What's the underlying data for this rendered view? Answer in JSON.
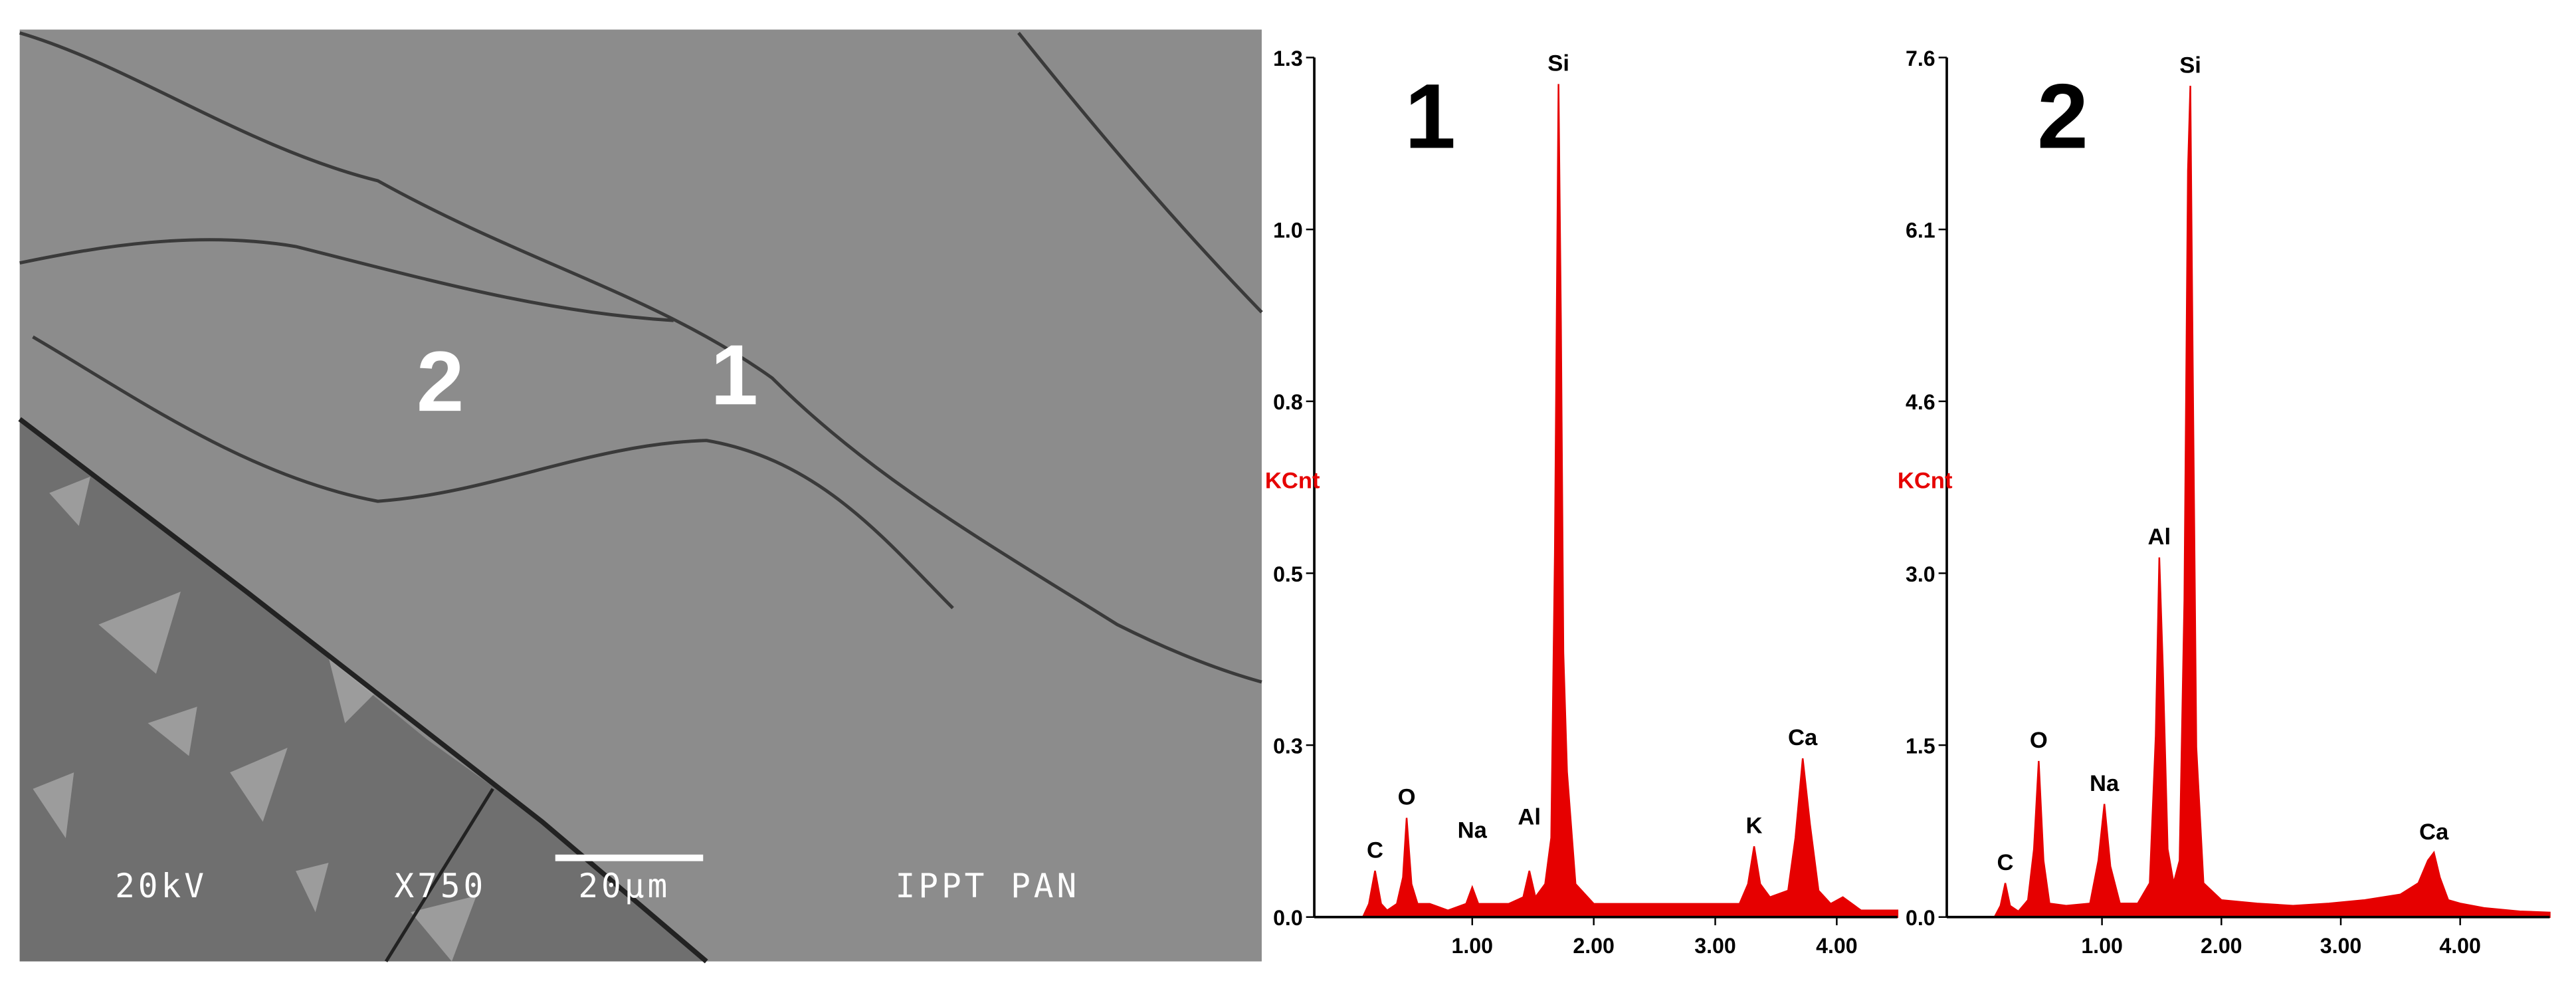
{
  "image": {
    "labels": [
      "2",
      "1"
    ],
    "info": [
      "20kV",
      "X750",
      "20µm",
      "IPPT PAN"
    ]
  },
  "chart_data": [
    {
      "type": "area",
      "panel_label": "1",
      "ylabel": "KCnt",
      "color": "#e60000",
      "xlim": [
        -0.3,
        4.5
      ],
      "ylim": [
        0,
        1.3
      ],
      "xticks": [
        {
          "value": 1,
          "label": "1.00"
        },
        {
          "value": 2,
          "label": "2.00"
        },
        {
          "value": 3,
          "label": "3.00"
        },
        {
          "value": 4,
          "label": "4.00"
        }
      ],
      "yticks": [
        {
          "value": 0,
          "label": "0.0"
        },
        {
          "value": 0.26,
          "label": "0.3"
        },
        {
          "value": 0.52,
          "label": "0.5"
        },
        {
          "value": 0.78,
          "label": "0.8"
        },
        {
          "value": 1.04,
          "label": "1.0"
        },
        {
          "value": 1.3,
          "label": "1.3"
        }
      ],
      "x": [
        0.1,
        0.15,
        0.2,
        0.25,
        0.3,
        0.38,
        0.43,
        0.46,
        0.5,
        0.55,
        0.65,
        0.8,
        0.95,
        1.0,
        1.05,
        1.15,
        1.3,
        1.42,
        1.47,
        1.52,
        1.6,
        1.65,
        1.68,
        1.7,
        1.71,
        1.73,
        1.75,
        1.78,
        1.85,
        2.0,
        2.3,
        2.6,
        2.9,
        3.2,
        3.27,
        3.32,
        3.37,
        3.45,
        3.6,
        3.66,
        3.72,
        3.78,
        3.85,
        3.95,
        4.05,
        4.2,
        4.5
      ],
      "values": [
        0.0,
        0.02,
        0.07,
        0.02,
        0.01,
        0.02,
        0.06,
        0.15,
        0.05,
        0.02,
        0.02,
        0.01,
        0.02,
        0.045,
        0.02,
        0.02,
        0.02,
        0.03,
        0.07,
        0.03,
        0.05,
        0.12,
        0.55,
        1.02,
        1.26,
        0.9,
        0.4,
        0.22,
        0.05,
        0.02,
        0.02,
        0.02,
        0.02,
        0.02,
        0.05,
        0.107,
        0.05,
        0.03,
        0.04,
        0.12,
        0.24,
        0.14,
        0.04,
        0.02,
        0.03,
        0.01,
        0.01
      ],
      "annotations": [
        {
          "text": "C",
          "x": 0.2,
          "y": 0.07
        },
        {
          "text": "O",
          "x": 0.46,
          "y": 0.15
        },
        {
          "text": "Na",
          "x": 1.0,
          "y": 0.1
        },
        {
          "text": "Al",
          "x": 1.47,
          "y": 0.12
        },
        {
          "text": "Si",
          "x": 1.71,
          "y": 1.26
        },
        {
          "text": "K",
          "x": 3.32,
          "y": 0.107
        },
        {
          "text": "Ca",
          "x": 3.72,
          "y": 0.24
        }
      ]
    },
    {
      "type": "area",
      "panel_label": "2",
      "ylabel": "KCnt",
      "color": "#e60000",
      "xlim": [
        -0.3,
        4.75
      ],
      "ylim": [
        0,
        7.6
      ],
      "xticks": [
        {
          "value": 1,
          "label": "1.00"
        },
        {
          "value": 2,
          "label": "2.00"
        },
        {
          "value": 3,
          "label": "3.00"
        },
        {
          "value": 4,
          "label": "4.00"
        }
      ],
      "yticks": [
        {
          "value": 0,
          "label": "0.0"
        },
        {
          "value": 1.52,
          "label": "1.5"
        },
        {
          "value": 3.04,
          "label": "3.0"
        },
        {
          "value": 4.56,
          "label": "4.6"
        },
        {
          "value": 6.08,
          "label": "6.1"
        },
        {
          "value": 7.6,
          "label": "7.6"
        }
      ],
      "x": [
        0.1,
        0.15,
        0.19,
        0.23,
        0.3,
        0.38,
        0.43,
        0.47,
        0.51,
        0.56,
        0.7,
        0.9,
        0.97,
        1.02,
        1.07,
        1.15,
        1.3,
        1.4,
        1.45,
        1.48,
        1.51,
        1.55,
        1.6,
        1.65,
        1.69,
        1.72,
        1.74,
        1.76,
        1.79,
        1.85,
        2.0,
        2.3,
        2.6,
        2.9,
        3.2,
        3.5,
        3.65,
        3.73,
        3.78,
        3.83,
        3.9,
        4.0,
        4.2,
        4.5,
        4.75
      ],
      "values": [
        0.0,
        0.1,
        0.3,
        0.1,
        0.05,
        0.15,
        0.6,
        1.38,
        0.5,
        0.12,
        0.1,
        0.12,
        0.5,
        1.0,
        0.45,
        0.12,
        0.12,
        0.3,
        1.6,
        3.18,
        2.2,
        0.6,
        0.3,
        0.5,
        2.8,
        6.6,
        7.35,
        4.9,
        1.5,
        0.3,
        0.15,
        0.12,
        0.1,
        0.12,
        0.15,
        0.2,
        0.3,
        0.5,
        0.57,
        0.35,
        0.15,
        0.12,
        0.08,
        0.05,
        0.04
      ],
      "annotations": [
        {
          "text": "C",
          "x": 0.19,
          "y": 0.3
        },
        {
          "text": "O",
          "x": 0.47,
          "y": 1.38
        },
        {
          "text": "Na",
          "x": 1.02,
          "y": 1.0
        },
        {
          "text": "Al",
          "x": 1.48,
          "y": 3.18
        },
        {
          "text": "Si",
          "x": 1.74,
          "y": 7.35
        },
        {
          "text": "Ca",
          "x": 3.78,
          "y": 0.57
        }
      ]
    }
  ]
}
